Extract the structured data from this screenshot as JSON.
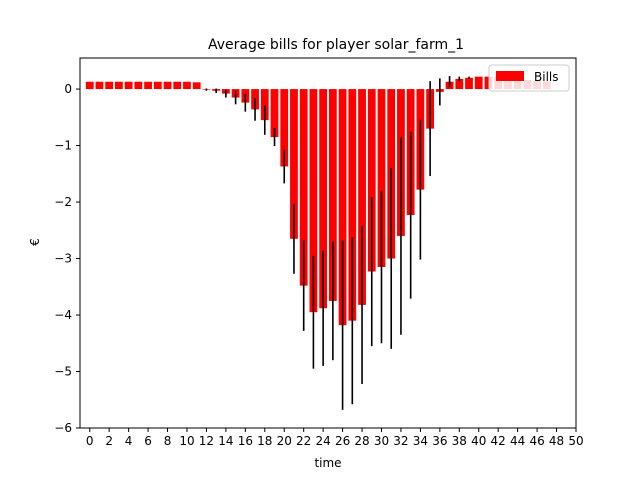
{
  "chart_data": {
    "type": "bar",
    "title": "Average bills for player solar_farm_1",
    "xlabel": "time",
    "ylabel": "€",
    "xlim": [
      -1,
      50
    ],
    "ylim": [
      -6,
      0.55
    ],
    "xticks": [
      0,
      2,
      4,
      6,
      8,
      10,
      12,
      14,
      16,
      18,
      20,
      22,
      24,
      26,
      28,
      30,
      32,
      34,
      36,
      38,
      40,
      42,
      44,
      46,
      48,
      50
    ],
    "yticks": [
      0,
      -1,
      -2,
      -3,
      -4,
      -5,
      -6
    ],
    "legend": {
      "position": "top-right",
      "label": "Bills"
    },
    "grid": false,
    "colors": {
      "bars": "#ff0000",
      "error_bars": "#000000"
    },
    "series": [
      {
        "name": "Bills",
        "x": [
          0,
          1,
          2,
          3,
          4,
          5,
          6,
          7,
          8,
          9,
          10,
          11,
          12,
          13,
          14,
          15,
          16,
          17,
          18,
          19,
          20,
          21,
          22,
          23,
          24,
          25,
          26,
          27,
          28,
          29,
          30,
          31,
          32,
          33,
          34,
          35,
          36,
          37,
          38,
          39,
          40,
          41,
          42,
          43,
          44,
          45,
          46,
          47
        ],
        "values": [
          0.13,
          0.13,
          0.13,
          0.13,
          0.13,
          0.13,
          0.13,
          0.13,
          0.13,
          0.13,
          0.13,
          0.12,
          -0.01,
          -0.03,
          -0.08,
          -0.15,
          -0.24,
          -0.36,
          -0.55,
          -0.85,
          -1.37,
          -2.65,
          -3.48,
          -3.95,
          -3.88,
          -3.75,
          -4.18,
          -4.1,
          -3.82,
          -3.23,
          -3.15,
          -3.0,
          -2.6,
          -2.23,
          -1.78,
          -0.7,
          -0.05,
          0.13,
          0.18,
          0.2,
          0.22,
          0.22,
          0.22,
          0.21,
          0.18,
          0.16,
          0.15,
          0.14
        ],
        "errors": [
          0.0,
          0.0,
          0.0,
          0.0,
          0.0,
          0.0,
          0.0,
          0.0,
          0.0,
          0.0,
          0.0,
          0.0,
          0.02,
          0.04,
          0.07,
          0.12,
          0.16,
          0.2,
          0.26,
          0.16,
          0.3,
          0.62,
          0.8,
          1.0,
          1.02,
          1.05,
          1.5,
          1.48,
          1.4,
          1.32,
          1.35,
          1.6,
          1.75,
          1.48,
          1.24,
          0.84,
          0.24,
          0.1,
          0.04,
          0.02,
          0.0,
          0.0,
          0.0,
          0.0,
          0.0,
          0.0,
          0.0,
          0.0
        ]
      }
    ]
  }
}
